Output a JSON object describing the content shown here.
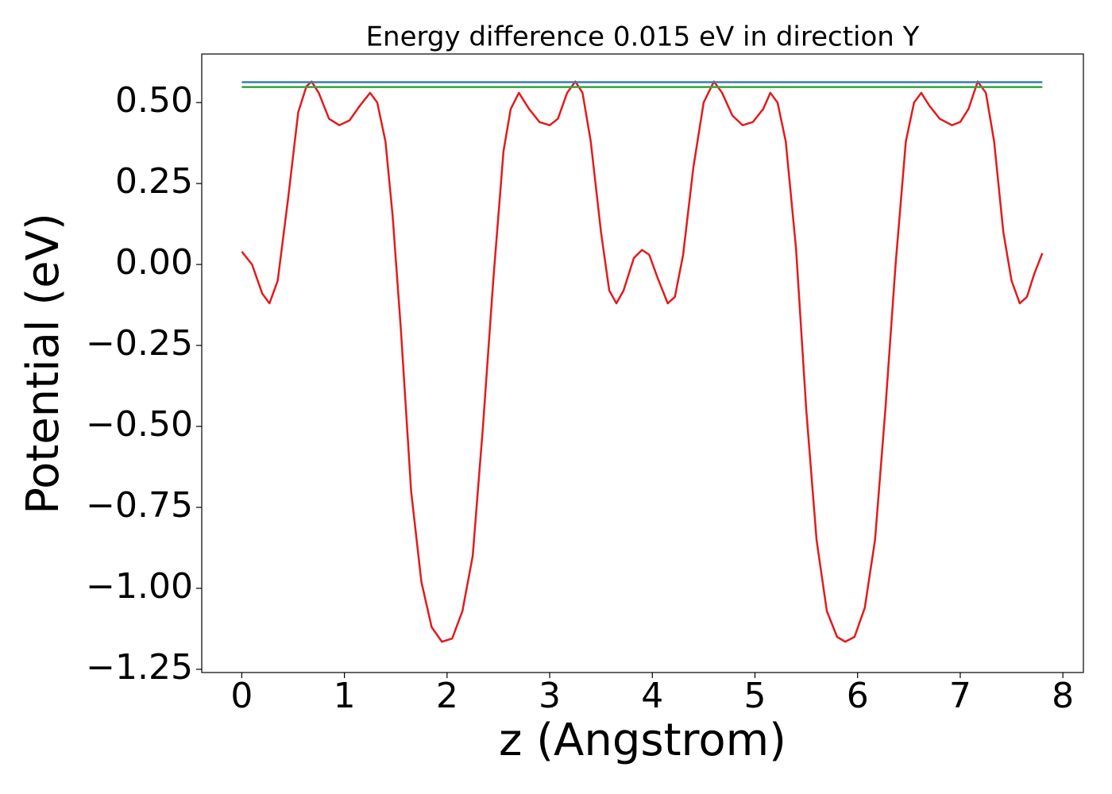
{
  "chart_data": {
    "type": "line",
    "title": "Energy difference 0.015 eV in direction Y",
    "xlabel": "z (Angstrom)",
    "ylabel": "Potential (eV)",
    "xlim": [
      -0.39,
      8.2
    ],
    "ylim": [
      -1.26,
      0.65
    ],
    "xticks": [
      0,
      1,
      2,
      3,
      4,
      5,
      6,
      7,
      8
    ],
    "yticks": [
      {
        "value": 0.5,
        "label": "0.50"
      },
      {
        "value": 0.25,
        "label": "0.25"
      },
      {
        "value": 0,
        "label": "0.00"
      },
      {
        "value": -0.25,
        "label": "−0.25"
      },
      {
        "value": -0.5,
        "label": "−0.50"
      },
      {
        "value": -0.75,
        "label": "−0.75"
      },
      {
        "value": -1,
        "label": "−1.00"
      },
      {
        "value": -1.25,
        "label": "−1.25"
      }
    ],
    "grid": false,
    "series": [
      {
        "color": "#e41a1c",
        "x": [
          0,
          0.1,
          0.2,
          0.27,
          0.35,
          0.45,
          0.55,
          0.63,
          0.68,
          0.75,
          0.85,
          0.95,
          1.05,
          1.15,
          1.25,
          1.32,
          1.4,
          1.47,
          1.55,
          1.65,
          1.75,
          1.85,
          1.95,
          2.05,
          2.15,
          2.25,
          2.35,
          2.45,
          2.55,
          2.62,
          2.7,
          2.8,
          2.9,
          3.0,
          3.08,
          3.17,
          3.25,
          3.32,
          3.4,
          3.5,
          3.58,
          3.65,
          3.72,
          3.82,
          3.9,
          3.97,
          4.05,
          4.15,
          4.22,
          4.3,
          4.4,
          4.5,
          4.6,
          4.68,
          4.78,
          4.88,
          4.98,
          5.08,
          5.15,
          5.22,
          5.3,
          5.4,
          5.5,
          5.6,
          5.7,
          5.8,
          5.88,
          5.97,
          6.07,
          6.17,
          6.27,
          6.37,
          6.47,
          6.55,
          6.62,
          6.7,
          6.8,
          6.92,
          7.0,
          7.08,
          7.17,
          7.25,
          7.33,
          7.42,
          7.5,
          7.58,
          7.65,
          7.72,
          7.8
        ],
        "values": [
          0.04,
          0.0,
          -0.09,
          -0.12,
          -0.05,
          0.2,
          0.47,
          0.55,
          0.565,
          0.53,
          0.45,
          0.43,
          0.445,
          0.49,
          0.53,
          0.5,
          0.38,
          0.15,
          -0.2,
          -0.7,
          -0.98,
          -1.12,
          -1.165,
          -1.155,
          -1.07,
          -0.9,
          -0.5,
          -0.05,
          0.35,
          0.48,
          0.53,
          0.48,
          0.44,
          0.43,
          0.45,
          0.53,
          0.565,
          0.53,
          0.38,
          0.1,
          -0.08,
          -0.12,
          -0.08,
          0.02,
          0.045,
          0.03,
          -0.04,
          -0.12,
          -0.1,
          0.03,
          0.3,
          0.5,
          0.565,
          0.53,
          0.46,
          0.43,
          0.44,
          0.48,
          0.53,
          0.5,
          0.38,
          0.05,
          -0.45,
          -0.85,
          -1.07,
          -1.15,
          -1.165,
          -1.15,
          -1.06,
          -0.85,
          -0.45,
          0.0,
          0.38,
          0.5,
          0.53,
          0.49,
          0.45,
          0.43,
          0.44,
          0.48,
          0.565,
          0.53,
          0.38,
          0.1,
          -0.05,
          -0.12,
          -0.1,
          -0.03,
          0.035
        ]
      },
      {
        "color": "#3a7fb0",
        "x": [
          0,
          7.8
        ],
        "values": [
          0.563,
          0.563
        ]
      },
      {
        "color": "#3aa040",
        "x": [
          0,
          7.8
        ],
        "values": [
          0.548,
          0.548
        ]
      }
    ]
  }
}
